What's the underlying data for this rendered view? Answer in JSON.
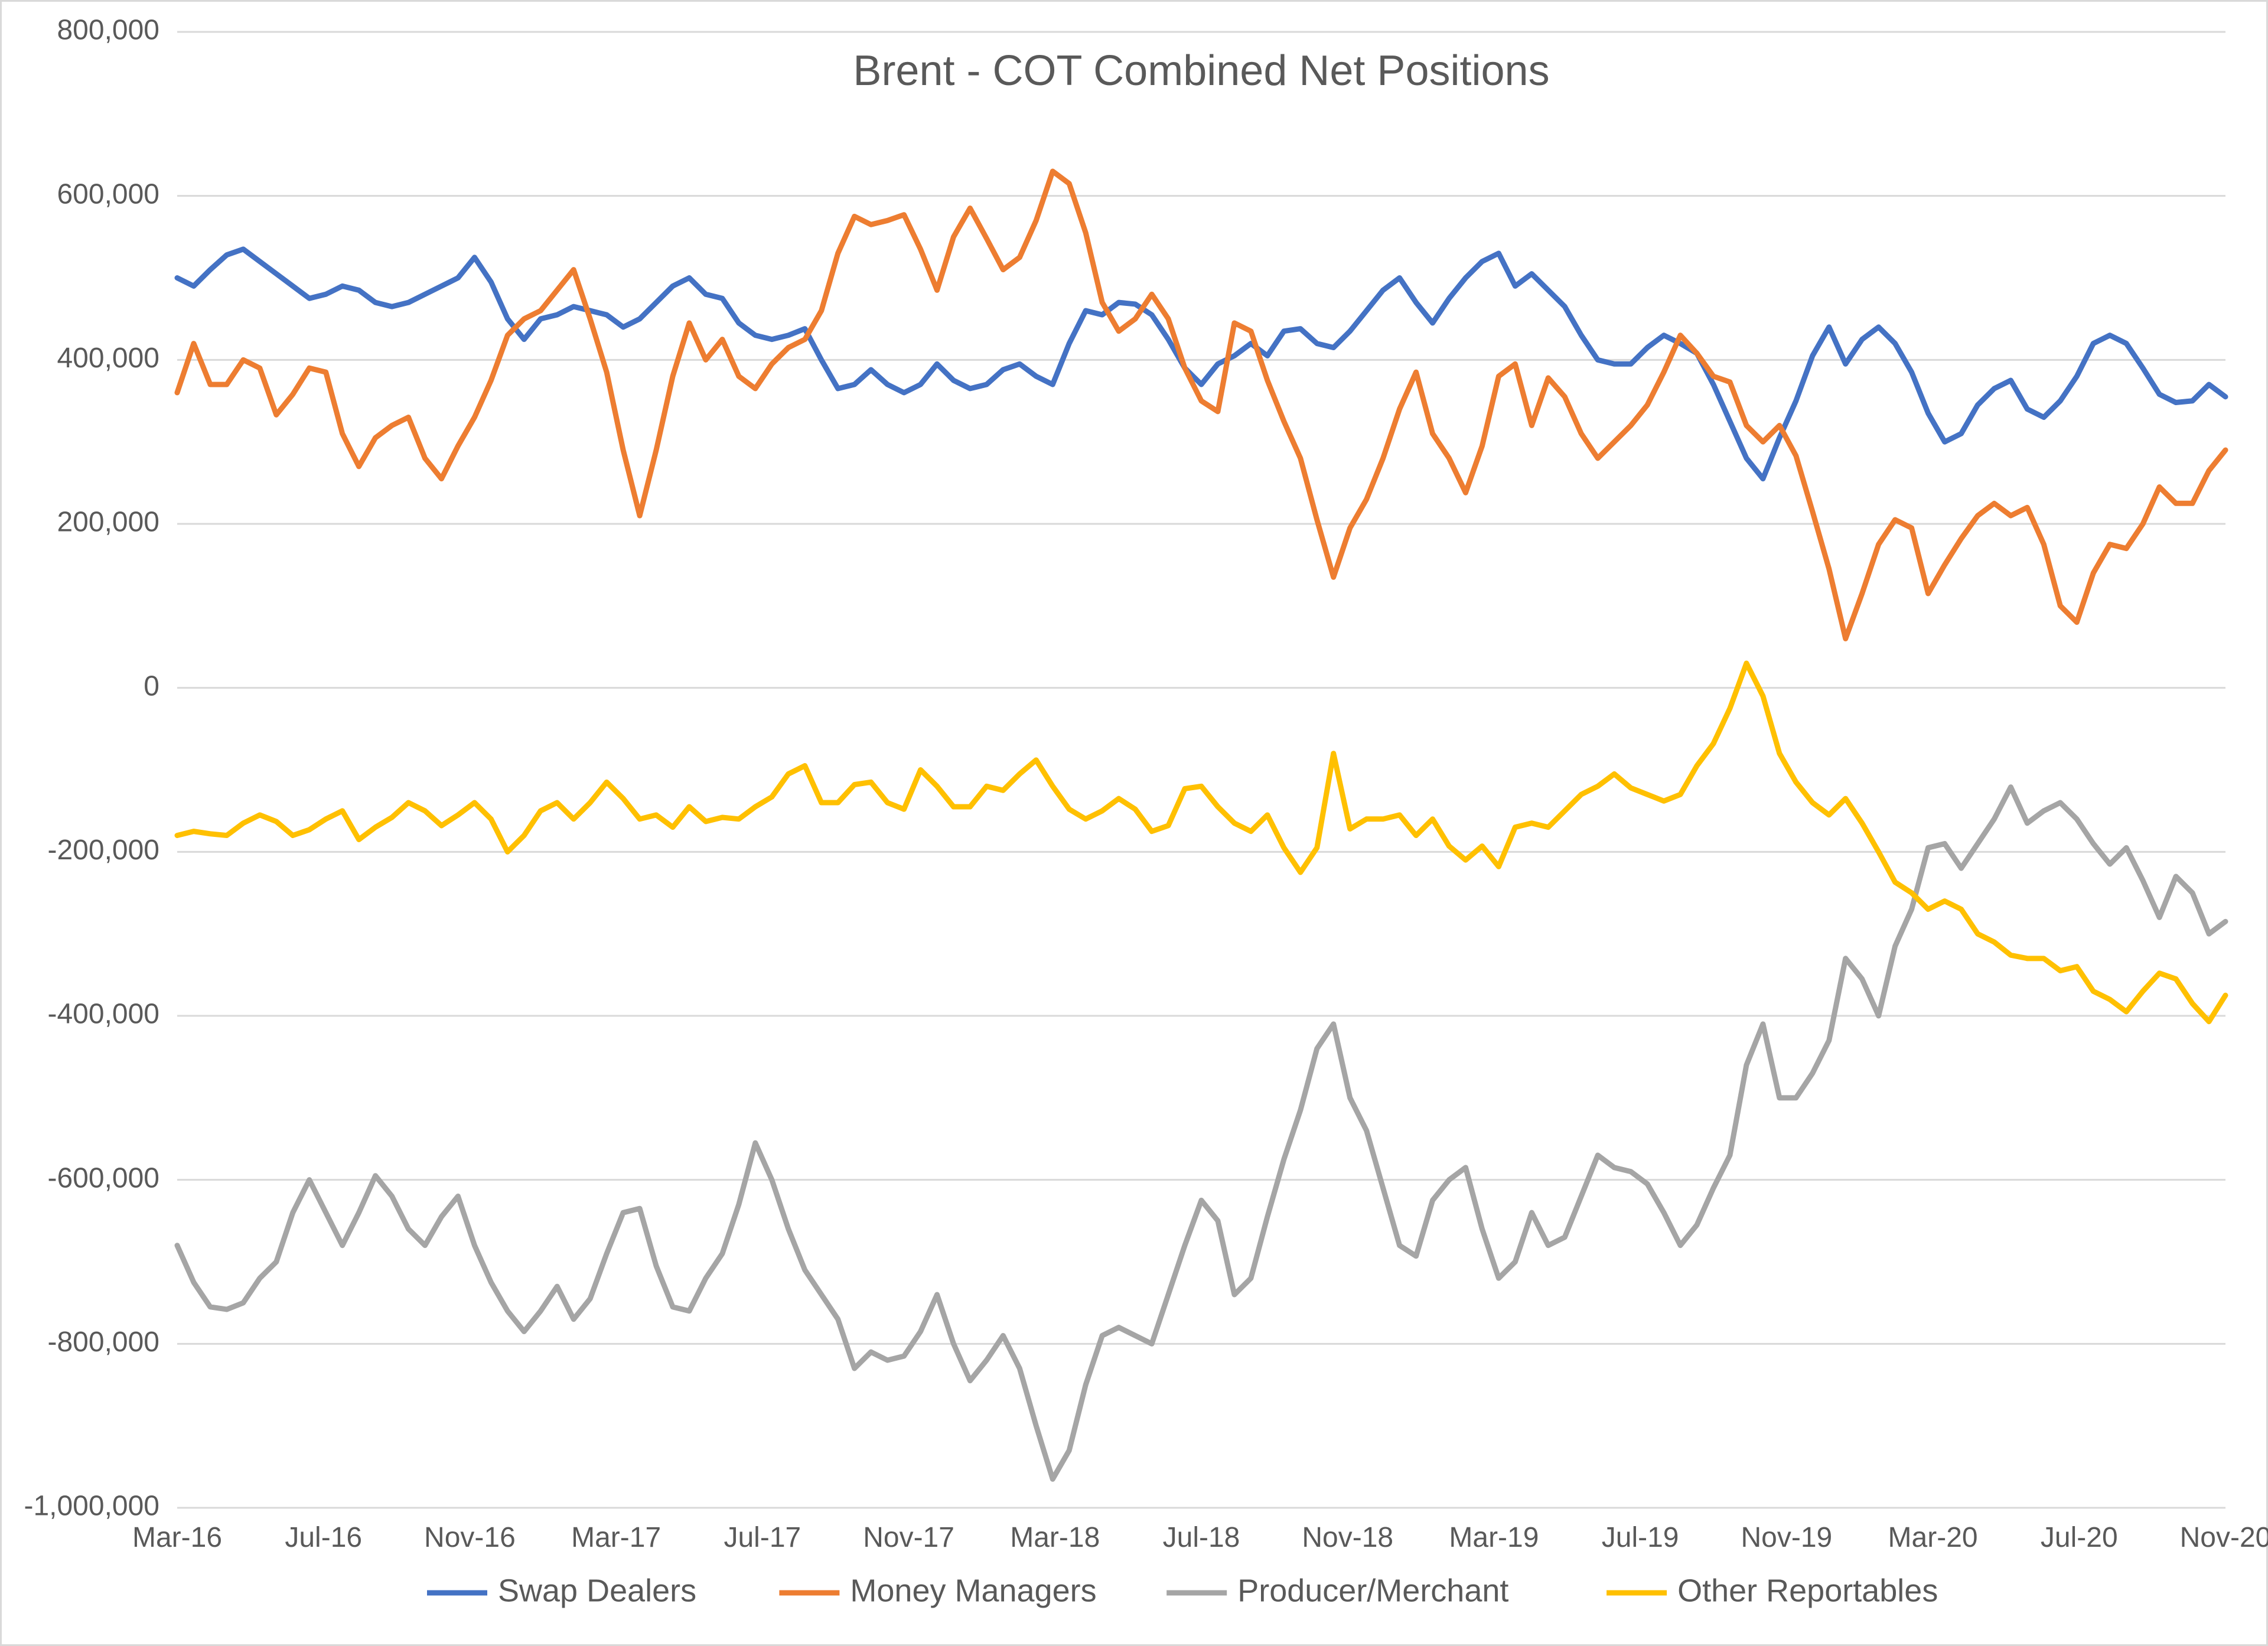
{
  "chart": {
    "type": "line",
    "title": "Brent - COT Combined Net Positions",
    "title_fontsize": 24,
    "title_color": "#595959",
    "background_color": "#ffffff",
    "plot_border_color": "#d9d9d9",
    "grid_color": "#d9d9d9",
    "axis_label_color": "#595959",
    "axis_fontsize": 16,
    "line_width": 3,
    "y": {
      "min": -1000000,
      "max": 800000,
      "tick_step": 200000,
      "ticks": [
        -1000000,
        -800000,
        -600000,
        -400000,
        -200000,
        0,
        200000,
        400000,
        600000,
        800000
      ],
      "tick_labels": [
        "-1,000,000",
        "-800,000",
        "-600,000",
        "-400,000",
        "-200,000",
        "0",
        "200,000",
        "400,000",
        "600,000",
        "800,000"
      ]
    },
    "x": {
      "categories": [
        "Mar-16",
        "Jul-16",
        "Nov-16",
        "Mar-17",
        "Jul-17",
        "Nov-17",
        "Mar-18",
        "Jul-18",
        "Nov-18",
        "Mar-19",
        "Jul-19",
        "Nov-19",
        "Mar-20",
        "Jul-20",
        "Nov-20"
      ]
    },
    "legend": {
      "position": "bottom",
      "fontsize": 18,
      "items": [
        {
          "label": "Swap Dealers",
          "color": "#4472c4"
        },
        {
          "label": "Money Managers",
          "color": "#ed7d31"
        },
        {
          "label": "Producer/Merchant",
          "color": "#a5a5a5"
        },
        {
          "label": "Other Reportables",
          "color": "#ffc000"
        }
      ]
    },
    "series": [
      {
        "name": "Swap Dealers",
        "color": "#4472c4",
        "values": [
          500000,
          490000,
          510000,
          528000,
          535000,
          520000,
          505000,
          490000,
          475000,
          480000,
          490000,
          485000,
          470000,
          465000,
          470000,
          480000,
          490000,
          500000,
          525000,
          495000,
          450000,
          425000,
          450000,
          455000,
          465000,
          460000,
          455000,
          440000,
          450000,
          470000,
          490000,
          500000,
          480000,
          475000,
          445000,
          430000,
          425000,
          430000,
          438000,
          400000,
          365000,
          370000,
          388000,
          370000,
          360000,
          370000,
          395000,
          375000,
          365000,
          370000,
          388000,
          395000,
          380000,
          370000,
          420000,
          460000,
          455000,
          470000,
          468000,
          455000,
          425000,
          390000,
          370000,
          395000,
          405000,
          420000,
          405000,
          435000,
          438000,
          420000,
          415000,
          435000,
          460000,
          485000,
          500000,
          470000,
          445000,
          475000,
          500000,
          520000,
          530000,
          490000,
          505000,
          485000,
          465000,
          430000,
          400000,
          395000,
          395000,
          415000,
          430000,
          420000,
          408000,
          370000,
          325000,
          280000,
          255000,
          305000,
          350000,
          405000,
          440000,
          395000,
          425000,
          440000,
          420000,
          385000,
          335000,
          300000,
          310000,
          345000,
          365000,
          375000,
          340000,
          330000,
          350000,
          380000,
          420000,
          430000,
          420000,
          390000,
          358000,
          348000,
          350000,
          370000,
          355000
        ]
      },
      {
        "name": "Money Managers",
        "color": "#ed7d31",
        "values": [
          360000,
          420000,
          370000,
          370000,
          400000,
          390000,
          333000,
          358000,
          390000,
          385000,
          310000,
          270000,
          305000,
          320000,
          330000,
          280000,
          255000,
          295000,
          330000,
          375000,
          430000,
          450000,
          460000,
          485000,
          510000,
          450000,
          385000,
          290000,
          210000,
          290000,
          380000,
          445000,
          400000,
          425000,
          380000,
          365000,
          395000,
          415000,
          425000,
          460000,
          530000,
          575000,
          565000,
          570000,
          577000,
          535000,
          485000,
          550000,
          585000,
          548000,
          510000,
          525000,
          570000,
          630000,
          615000,
          555000,
          470000,
          435000,
          450000,
          480000,
          450000,
          390000,
          350000,
          337000,
          445000,
          435000,
          375000,
          325000,
          280000,
          205000,
          135000,
          195000,
          230000,
          280000,
          340000,
          385000,
          310000,
          280000,
          238000,
          295000,
          380000,
          395000,
          320000,
          378000,
          355000,
          310000,
          280000,
          300000,
          320000,
          345000,
          385000,
          430000,
          408000,
          380000,
          373000,
          320000,
          300000,
          320000,
          283000,
          215000,
          145000,
          60000,
          115000,
          175000,
          205000,
          195000,
          115000,
          150000,
          182000,
          210000,
          225000,
          210000,
          220000,
          175000,
          100000,
          80000,
          140000,
          175000,
          170000,
          200000,
          245000,
          225000,
          225000,
          265000,
          290000
        ]
      },
      {
        "name": "Producer/Merchant",
        "color": "#a5a5a5",
        "values": [
          -680000,
          -725000,
          -755000,
          -758000,
          -750000,
          -720000,
          -700000,
          -640000,
          -600000,
          -640000,
          -680000,
          -640000,
          -595000,
          -620000,
          -660000,
          -680000,
          -645000,
          -620000,
          -680000,
          -725000,
          -760000,
          -785000,
          -760000,
          -730000,
          -770000,
          -745000,
          -690000,
          -640000,
          -635000,
          -705000,
          -755000,
          -760000,
          -720000,
          -690000,
          -630000,
          -555000,
          -600000,
          -660000,
          -710000,
          -740000,
          -770000,
          -830000,
          -810000,
          -820000,
          -815000,
          -785000,
          -740000,
          -800000,
          -845000,
          -820000,
          -790000,
          -830000,
          -900000,
          -965000,
          -930000,
          -850000,
          -790000,
          -780000,
          -790000,
          -800000,
          -740000,
          -680000,
          -625000,
          -650000,
          -740000,
          -720000,
          -645000,
          -575000,
          -515000,
          -440000,
          -410000,
          -500000,
          -540000,
          -610000,
          -680000,
          -693000,
          -625000,
          -600000,
          -585000,
          -660000,
          -720000,
          -700000,
          -640000,
          -680000,
          -670000,
          -620000,
          -570000,
          -585000,
          -590000,
          -605000,
          -640000,
          -680000,
          -655000,
          -610000,
          -570000,
          -460000,
          -410000,
          -500000,
          -500000,
          -470000,
          -430000,
          -330000,
          -355000,
          -400000,
          -315000,
          -270000,
          -195000,
          -190000,
          -220000,
          -190000,
          -160000,
          -121000,
          -165000,
          -150000,
          -140000,
          -160000,
          -190000,
          -215000,
          -195000,
          -235000,
          -280000,
          -230000,
          -250000,
          -300000,
          -285000
        ]
      },
      {
        "name": "Other Reportables",
        "color": "#ffc000",
        "values": [
          -180000,
          -175000,
          -178000,
          -180000,
          -165000,
          -155000,
          -163000,
          -180000,
          -173000,
          -160000,
          -150000,
          -185000,
          -170000,
          -158000,
          -140000,
          -150000,
          -168000,
          -155000,
          -140000,
          -160000,
          -200000,
          -180000,
          -150000,
          -140000,
          -160000,
          -140000,
          -115000,
          -135000,
          -160000,
          -155000,
          -170000,
          -145000,
          -163000,
          -158000,
          -160000,
          -145000,
          -133000,
          -105000,
          -95000,
          -140000,
          -140000,
          -118000,
          -115000,
          -140000,
          -148000,
          -100000,
          -120000,
          -145000,
          -145000,
          -120000,
          -125000,
          -105000,
          -88000,
          -120000,
          -148000,
          -160000,
          -150000,
          -135000,
          -148000,
          -175000,
          -168000,
          -123000,
          -120000,
          -145000,
          -165000,
          -175000,
          -155000,
          -195000,
          -225000,
          -195000,
          -80000,
          -172000,
          -160000,
          -160000,
          -155000,
          -180000,
          -160000,
          -193000,
          -210000,
          -193000,
          -218000,
          -170000,
          -165000,
          -170000,
          -150000,
          -130000,
          -120000,
          -105000,
          -122000,
          -130000,
          -138000,
          -130000,
          -95000,
          -68000,
          -25000,
          30000,
          -10000,
          -80000,
          -115000,
          -140000,
          -155000,
          -135000,
          -165000,
          -200000,
          -237000,
          -250000,
          -270000,
          -260000,
          -270000,
          -300000,
          -310000,
          -326000,
          -330000,
          -330000,
          -345000,
          -340000,
          -370000,
          -380000,
          -395000,
          -370000,
          -348000,
          -355000,
          -385000,
          -407000,
          -375000
        ]
      }
    ]
  }
}
